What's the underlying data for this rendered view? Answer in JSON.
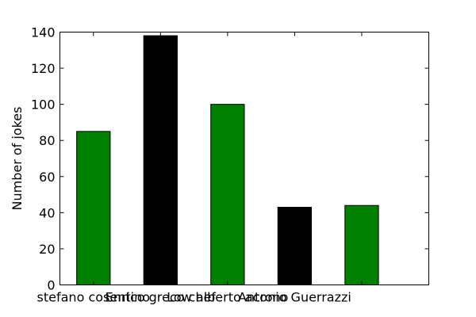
{
  "chart_data": {
    "type": "bar",
    "categories": [
      "stefano cosentino",
      "Enrico greco chef",
      "Low alberto acrono",
      "Antonio Guerrazzi"
    ],
    "bars": [
      {
        "category": "stefano cosentino",
        "value": 85,
        "color": "#008000"
      },
      {
        "category": "Enrico greco chef",
        "value": 138,
        "color": "#000000"
      },
      {
        "category": "Low alberto acrono",
        "value": 100,
        "color": "#008000"
      },
      {
        "category": "Antonio Guerrazzi",
        "value": 43,
        "color": "#000000"
      },
      {
        "category": "",
        "value": 44,
        "color": "#008000"
      }
    ],
    "xlabel": "",
    "ylabel": "Number of jokes",
    "ylim": [
      0,
      140
    ],
    "yticks": [
      0,
      20,
      40,
      60,
      80,
      100,
      120,
      140
    ],
    "grid": false,
    "legend": "none"
  }
}
